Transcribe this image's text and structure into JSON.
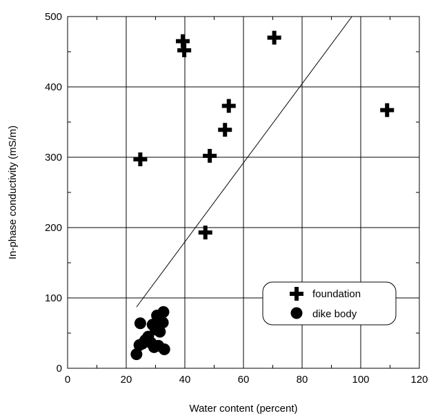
{
  "chart_data": {
    "type": "scatter",
    "xlabel": "Water content (percent)",
    "ylabel": "In-phase conductivity (mS/m)",
    "xlim": [
      0,
      120
    ],
    "ylim": [
      0,
      500
    ],
    "xticks": [
      0,
      20,
      40,
      60,
      80,
      100,
      120
    ],
    "yticks": [
      0,
      100,
      200,
      300,
      400,
      500
    ],
    "grid": true,
    "legend_position": "bottom-right",
    "series": [
      {
        "name": "foundation",
        "marker": "plus",
        "color": "#000000",
        "points": [
          {
            "x": 39.3,
            "y": 465
          },
          {
            "x": 39.8,
            "y": 452
          },
          {
            "x": 70.5,
            "y": 470
          },
          {
            "x": 24.8,
            "y": 297
          },
          {
            "x": 48.5,
            "y": 302
          },
          {
            "x": 53.7,
            "y": 339
          },
          {
            "x": 55.0,
            "y": 373
          },
          {
            "x": 47.0,
            "y": 193
          },
          {
            "x": 109.0,
            "y": 367
          }
        ]
      },
      {
        "name": "dike body",
        "marker": "circle",
        "color": "#000000",
        "points": [
          {
            "x": 23.5,
            "y": 20
          },
          {
            "x": 24.5,
            "y": 33
          },
          {
            "x": 24.8,
            "y": 64
          },
          {
            "x": 25.5,
            "y": 35
          },
          {
            "x": 26.5,
            "y": 40
          },
          {
            "x": 27.5,
            "y": 45
          },
          {
            "x": 28.5,
            "y": 36
          },
          {
            "x": 29.0,
            "y": 62
          },
          {
            "x": 29.5,
            "y": 30
          },
          {
            "x": 30.0,
            "y": 55
          },
          {
            "x": 30.5,
            "y": 75
          },
          {
            "x": 31.0,
            "y": 32
          },
          {
            "x": 31.5,
            "y": 52
          },
          {
            "x": 32.5,
            "y": 65
          },
          {
            "x": 32.7,
            "y": 80
          },
          {
            "x": 33.0,
            "y": 27
          },
          {
            "x": 31.5,
            "y": 70
          }
        ]
      }
    ],
    "fit_line": {
      "x": [
        23.5,
        97.0
      ],
      "y": [
        87,
        500
      ]
    }
  }
}
